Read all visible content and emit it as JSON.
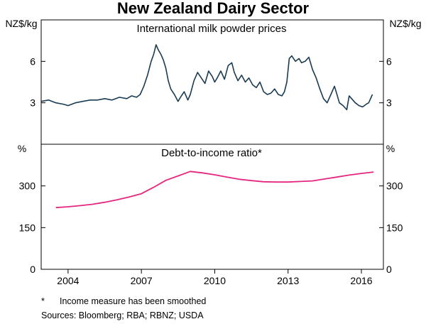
{
  "chart_data": {
    "title": "New Zealand Dairy Sector",
    "x_range": [
      2002.9,
      2016.9
    ],
    "x_ticks": [
      {
        "value": 2004,
        "label": "2004"
      },
      {
        "value": 2007,
        "label": "2007"
      },
      {
        "value": 2010,
        "label": "2010"
      },
      {
        "value": 2013,
        "label": "2013"
      },
      {
        "value": 2016,
        "label": "2016"
      }
    ],
    "panels": [
      {
        "id": "top",
        "type": "line",
        "title": "International milk powder prices",
        "unit_left": "NZ$/kg",
        "unit_right": "NZ$/kg",
        "ylim": [
          0,
          9
        ],
        "y_ticks": [
          {
            "value": 3,
            "label": "3"
          },
          {
            "value": 6,
            "label": "6"
          }
        ],
        "series": [
          {
            "name": "International milk powder prices",
            "color": "#1a3c52",
            "x": [
              2002.9,
              2003.2,
              2003.5,
              2003.8,
              2004.0,
              2004.3,
              2004.6,
              2004.9,
              2005.2,
              2005.5,
              2005.8,
              2006.1,
              2006.4,
              2006.6,
              2006.8,
              2006.95,
              2007.1,
              2007.25,
              2007.4,
              2007.5,
              2007.6,
              2007.7,
              2007.8,
              2007.9,
              2008.0,
              2008.1,
              2008.2,
              2008.35,
              2008.5,
              2008.6,
              2008.75,
              2008.9,
              2009.0,
              2009.15,
              2009.3,
              2009.45,
              2009.6,
              2009.75,
              2009.9,
              2010.0,
              2010.1,
              2010.25,
              2010.4,
              2010.55,
              2010.7,
              2010.8,
              2010.95,
              2011.1,
              2011.25,
              2011.4,
              2011.55,
              2011.7,
              2011.85,
              2012.0,
              2012.15,
              2012.3,
              2012.45,
              2012.6,
              2012.75,
              2012.85,
              2012.95,
              2013.05,
              2013.15,
              2013.3,
              2013.45,
              2013.55,
              2013.7,
              2013.85,
              2014.0,
              2014.15,
              2014.3,
              2014.45,
              2014.6,
              2014.75,
              2014.9,
              2015.0,
              2015.1,
              2015.25,
              2015.4,
              2015.5,
              2015.6,
              2015.75,
              2015.9,
              2016.05,
              2016.2,
              2016.3,
              2016.45
            ],
            "values": [
              3.1,
              3.2,
              3.0,
              2.9,
              2.8,
              3.0,
              3.1,
              3.2,
              3.2,
              3.3,
              3.2,
              3.4,
              3.3,
              3.5,
              3.4,
              3.6,
              4.2,
              5.0,
              6.0,
              6.5,
              7.2,
              6.8,
              6.5,
              6.1,
              5.5,
              4.6,
              4.0,
              3.6,
              3.1,
              3.4,
              3.8,
              3.2,
              3.6,
              4.6,
              5.2,
              4.8,
              4.4,
              5.3,
              4.9,
              4.5,
              4.8,
              5.3,
              4.7,
              5.7,
              5.9,
              5.2,
              4.6,
              5.0,
              4.5,
              4.8,
              4.3,
              4.1,
              4.5,
              3.8,
              3.6,
              3.7,
              4.0,
              3.6,
              3.5,
              3.8,
              4.5,
              6.2,
              6.4,
              6.0,
              6.2,
              5.9,
              6.0,
              6.3,
              5.4,
              4.8,
              4.0,
              3.3,
              3.0,
              3.6,
              4.2,
              3.6,
              3.0,
              2.8,
              2.5,
              3.5,
              3.3,
              3.0,
              2.8,
              2.7,
              2.9,
              3.0,
              3.6
            ]
          }
        ]
      },
      {
        "id": "bottom",
        "type": "line",
        "title": "Debt-to-income ratio*",
        "unit_left": "%",
        "unit_right": "%",
        "ylim": [
          0,
          450
        ],
        "y_ticks": [
          {
            "value": 0,
            "label": "0"
          },
          {
            "value": 150,
            "label": "150"
          },
          {
            "value": 300,
            "label": "300"
          }
        ],
        "series": [
          {
            "name": "Debt-to-income ratio",
            "color": "#e5267e",
            "x": [
              2003.5,
              2004.0,
              2004.5,
              2005.0,
              2005.5,
              2006.0,
              2006.5,
              2007.0,
              2007.5,
              2008.0,
              2008.5,
              2009.0,
              2009.5,
              2010.0,
              2010.5,
              2011.0,
              2011.5,
              2012.0,
              2012.5,
              2013.0,
              2013.5,
              2014.0,
              2014.5,
              2015.0,
              2015.5,
              2016.0,
              2016.5
            ],
            "values": [
              222,
              225,
              229,
              234,
              241,
              250,
              260,
              272,
              295,
              320,
              336,
              352,
              347,
              340,
              332,
              324,
              319,
              315,
              314,
              314,
              316,
              318,
              325,
              332,
              339,
              345,
              350
            ]
          }
        ]
      }
    ],
    "footnote": {
      "marker": "*",
      "text": "Income measure has been smoothed"
    },
    "sources": "Sources:   Bloomberg; RBA; RBNZ; USDA"
  }
}
